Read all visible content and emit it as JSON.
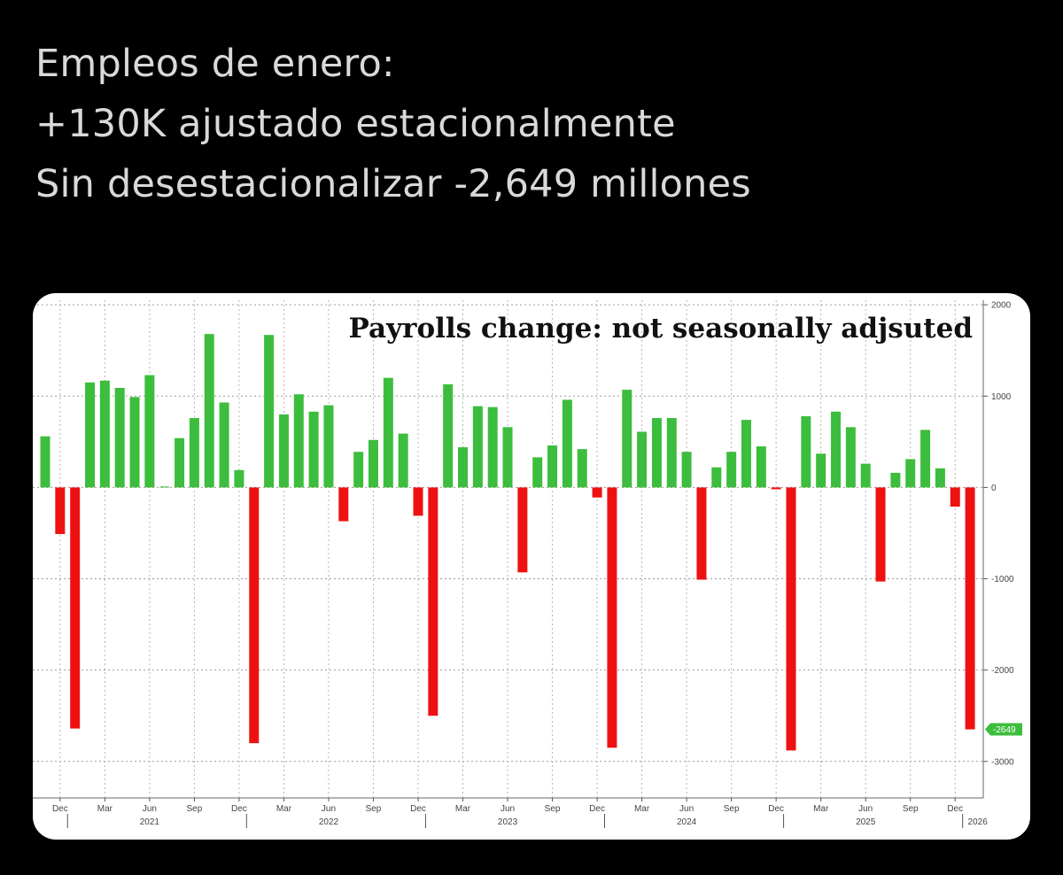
{
  "post": {
    "lines": [
      "Empleos de enero:",
      "+130K ajustado estacionalmente",
      "Sin desestacionalizar -2,649 millones"
    ]
  },
  "colors": {
    "positive": "#3dbd3d",
    "negative": "#ee1111",
    "value_tag": "#3dbd3d"
  },
  "chart_data": {
    "type": "bar",
    "title": "Payrolls change: not seasonally adjsuted",
    "ylim": [
      -3400,
      2050
    ],
    "yticks": [
      2000,
      1000,
      0,
      -1000,
      -2000,
      -3000
    ],
    "grid": true,
    "y_axis_side": "right",
    "last_value_label": "-2649",
    "x_tick_labels": [
      "Dec",
      "Mar",
      "Jun",
      "Sep"
    ],
    "year_labels": [
      "2021",
      "2022",
      "2023",
      "2024",
      "2025",
      "2026"
    ],
    "x": [
      "2020-11",
      "2020-12",
      "2021-01",
      "2021-02",
      "2021-03",
      "2021-04",
      "2021-05",
      "2021-06",
      "2021-07",
      "2021-08",
      "2021-09",
      "2021-10",
      "2021-11",
      "2021-12",
      "2022-01",
      "2022-02",
      "2022-03",
      "2022-04",
      "2022-05",
      "2022-06",
      "2022-07",
      "2022-08",
      "2022-09",
      "2022-10",
      "2022-11",
      "2022-12",
      "2023-01",
      "2023-02",
      "2023-03",
      "2023-04",
      "2023-05",
      "2023-06",
      "2023-07",
      "2023-08",
      "2023-09",
      "2023-10",
      "2023-11",
      "2023-12",
      "2024-01",
      "2024-02",
      "2024-03",
      "2024-04",
      "2024-05",
      "2024-06",
      "2024-07",
      "2024-08",
      "2024-09",
      "2024-10",
      "2024-11",
      "2024-12",
      "2025-01",
      "2025-02",
      "2025-03",
      "2025-04",
      "2025-05",
      "2025-06",
      "2025-07",
      "2025-08",
      "2025-09",
      "2025-10",
      "2025-11",
      "2025-12",
      "2026-01"
    ],
    "values": [
      560,
      -510,
      -2640,
      1150,
      1170,
      1090,
      990,
      1230,
      10,
      540,
      760,
      1680,
      930,
      190,
      -2800,
      1670,
      800,
      1020,
      830,
      900,
      -370,
      390,
      520,
      1200,
      590,
      -310,
      -2500,
      1130,
      440,
      890,
      880,
      660,
      -930,
      330,
      460,
      960,
      420,
      -110,
      -2850,
      1070,
      610,
      760,
      760,
      390,
      -1010,
      220,
      390,
      740,
      450,
      -20,
      -2880,
      780,
      370,
      830,
      660,
      260,
      -1030,
      160,
      310,
      630,
      210,
      -210,
      -2649
    ]
  }
}
